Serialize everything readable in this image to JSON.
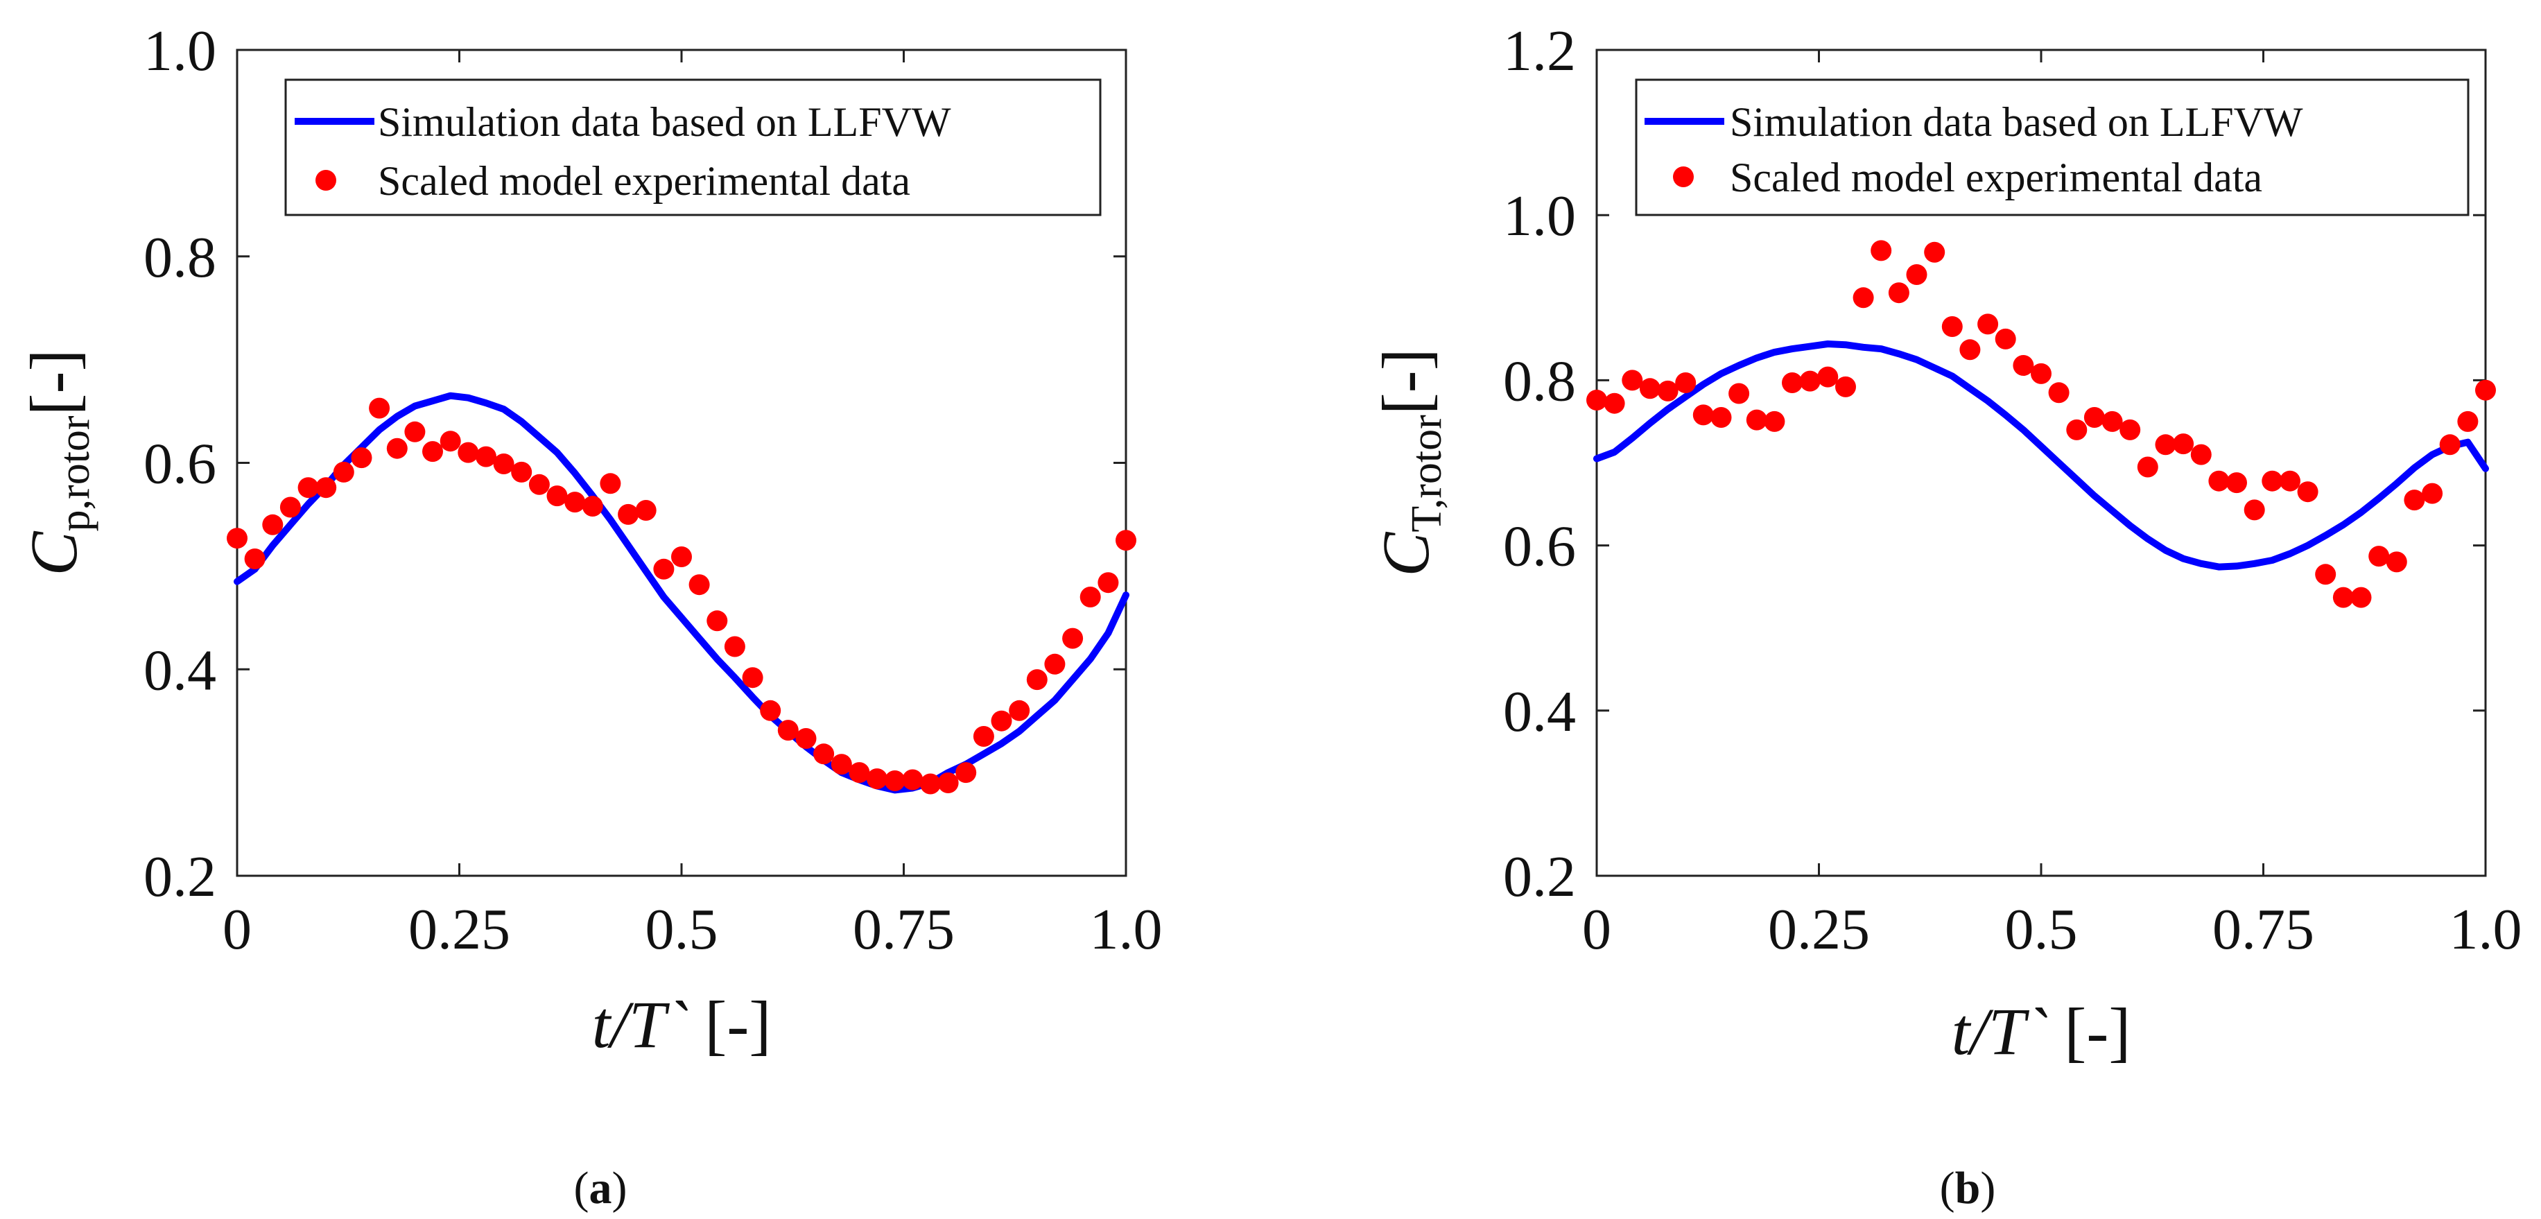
{
  "chart_data": [
    {
      "id": "a",
      "type": "line+scatter",
      "panel_label": "a",
      "xlabel": "t/T` [-]",
      "xlabel_var": "t/T`",
      "xlabel_unit": "[-]",
      "ylabel": "Cp,rotor [-]",
      "ylabel_var": "C",
      "ylabel_sub": "p,rotor",
      "ylabel_unit": "[-]",
      "xlim": [
        0,
        1.0
      ],
      "ylim": [
        0.2,
        1.0
      ],
      "x_ticks": [
        0,
        0.25,
        0.5,
        0.75,
        1.0
      ],
      "x_tick_labels": [
        "0",
        "0.25",
        "0.5",
        "0.75",
        "1.0"
      ],
      "y_ticks": [
        0.2,
        0.4,
        0.6,
        0.8,
        1.0
      ],
      "y_tick_labels": [
        "0.2",
        "0.4",
        "0.6",
        "0.8",
        "1.0"
      ],
      "legend_position": "top",
      "series": [
        {
          "name": "Simulation data based on LLFVW",
          "kind": "line",
          "color": "#0000ff",
          "x": [
            0,
            0.02,
            0.04,
            0.06,
            0.08,
            0.1,
            0.12,
            0.14,
            0.16,
            0.18,
            0.2,
            0.22,
            0.24,
            0.26,
            0.28,
            0.3,
            0.32,
            0.34,
            0.36,
            0.38,
            0.4,
            0.42,
            0.44,
            0.46,
            0.48,
            0.5,
            0.52,
            0.54,
            0.56,
            0.58,
            0.6,
            0.62,
            0.64,
            0.66,
            0.68,
            0.7,
            0.72,
            0.74,
            0.76,
            0.78,
            0.8,
            0.82,
            0.84,
            0.86,
            0.88,
            0.9,
            0.92,
            0.94,
            0.96,
            0.98,
            1.0
          ],
          "y": [
            0.485,
            0.497,
            0.52,
            0.54,
            0.56,
            0.578,
            0.598,
            0.615,
            0.632,
            0.645,
            0.655,
            0.66,
            0.665,
            0.663,
            0.658,
            0.652,
            0.64,
            0.625,
            0.61,
            0.59,
            0.568,
            0.545,
            0.52,
            0.495,
            0.47,
            0.45,
            0.43,
            0.41,
            0.392,
            0.373,
            0.355,
            0.34,
            0.325,
            0.312,
            0.3,
            0.293,
            0.287,
            0.283,
            0.285,
            0.29,
            0.3,
            0.308,
            0.318,
            0.328,
            0.34,
            0.355,
            0.37,
            0.39,
            0.41,
            0.435,
            0.472
          ]
        },
        {
          "name": "Scaled model experimental data",
          "kind": "scatter",
          "color": "#ff0000",
          "x": [
            0,
            0.02,
            0.04,
            0.06,
            0.08,
            0.1,
            0.12,
            0.14,
            0.16,
            0.18,
            0.2,
            0.22,
            0.24,
            0.26,
            0.28,
            0.3,
            0.32,
            0.34,
            0.36,
            0.38,
            0.4,
            0.42,
            0.44,
            0.46,
            0.48,
            0.5,
            0.52,
            0.54,
            0.56,
            0.58,
            0.6,
            0.62,
            0.64,
            0.66,
            0.68,
            0.7,
            0.72,
            0.74,
            0.76,
            0.78,
            0.8,
            0.82,
            0.84,
            0.86,
            0.88,
            0.9,
            0.92,
            0.94,
            0.96,
            0.98,
            1.0
          ],
          "y": [
            0.527,
            0.507,
            0.54,
            0.557,
            0.576,
            0.576,
            0.591,
            0.605,
            0.653,
            0.614,
            0.63,
            0.611,
            0.621,
            0.61,
            0.606,
            0.599,
            0.591,
            0.579,
            0.568,
            0.562,
            0.558,
            0.58,
            0.55,
            0.554,
            0.497,
            0.509,
            0.482,
            0.447,
            0.422,
            0.392,
            0.36,
            0.341,
            0.333,
            0.318,
            0.308,
            0.3,
            0.294,
            0.292,
            0.293,
            0.289,
            0.29,
            0.3,
            0.335,
            0.35,
            0.36,
            0.39,
            0.405,
            0.43,
            0.47,
            0.484,
            0.525
          ]
        }
      ]
    },
    {
      "id": "b",
      "type": "line+scatter",
      "panel_label": "b",
      "xlabel": "t/T` [-]",
      "xlabel_var": "t/T`",
      "xlabel_unit": "[-]",
      "ylabel": "CT,rotor [-]",
      "ylabel_var": "C",
      "ylabel_sub": "T,rotor",
      "ylabel_unit": "[-]",
      "xlim": [
        0,
        1.0
      ],
      "ylim": [
        0.2,
        1.2
      ],
      "x_ticks": [
        0,
        0.25,
        0.5,
        0.75,
        1.0
      ],
      "x_tick_labels": [
        "0",
        "0.25",
        "0.5",
        "0.75",
        "1.0"
      ],
      "y_ticks": [
        0.2,
        0.4,
        0.6,
        0.8,
        1.0,
        1.2
      ],
      "y_tick_labels": [
        "0.2",
        "0.4",
        "0.6",
        "0.8",
        "1.0",
        "1.2"
      ],
      "legend_position": "top",
      "series": [
        {
          "name": "Simulation data based on LLFVW",
          "kind": "line",
          "color": "#0000ff",
          "x": [
            0,
            0.02,
            0.04,
            0.06,
            0.08,
            0.1,
            0.12,
            0.14,
            0.16,
            0.18,
            0.2,
            0.22,
            0.24,
            0.26,
            0.28,
            0.3,
            0.32,
            0.34,
            0.36,
            0.38,
            0.4,
            0.42,
            0.44,
            0.46,
            0.48,
            0.5,
            0.52,
            0.54,
            0.56,
            0.58,
            0.6,
            0.62,
            0.64,
            0.66,
            0.68,
            0.7,
            0.72,
            0.74,
            0.76,
            0.78,
            0.8,
            0.82,
            0.84,
            0.86,
            0.88,
            0.9,
            0.92,
            0.94,
            0.96,
            0.98,
            1.0
          ],
          "y": [
            0.705,
            0.713,
            0.73,
            0.748,
            0.765,
            0.78,
            0.795,
            0.808,
            0.818,
            0.827,
            0.834,
            0.838,
            0.841,
            0.844,
            0.843,
            0.84,
            0.838,
            0.832,
            0.825,
            0.815,
            0.805,
            0.79,
            0.775,
            0.758,
            0.74,
            0.72,
            0.7,
            0.68,
            0.66,
            0.642,
            0.624,
            0.608,
            0.594,
            0.584,
            0.578,
            0.574,
            0.575,
            0.578,
            0.582,
            0.59,
            0.6,
            0.612,
            0.625,
            0.64,
            0.657,
            0.675,
            0.694,
            0.71,
            0.72,
            0.725,
            0.693
          ]
        },
        {
          "name": "Scaled model experimental data",
          "kind": "scatter",
          "color": "#ff0000",
          "x": [
            0,
            0.02,
            0.04,
            0.06,
            0.08,
            0.1,
            0.12,
            0.14,
            0.16,
            0.18,
            0.2,
            0.22,
            0.24,
            0.26,
            0.28,
            0.3,
            0.32,
            0.34,
            0.36,
            0.38,
            0.4,
            0.42,
            0.44,
            0.46,
            0.48,
            0.5,
            0.52,
            0.54,
            0.56,
            0.58,
            0.6,
            0.62,
            0.64,
            0.66,
            0.68,
            0.7,
            0.72,
            0.74,
            0.76,
            0.78,
            0.8,
            0.82,
            0.84,
            0.86,
            0.88,
            0.9,
            0.92,
            0.94,
            0.96,
            0.98,
            1.0
          ],
          "y": [
            0.776,
            0.772,
            0.8,
            0.79,
            0.787,
            0.797,
            0.758,
            0.755,
            0.784,
            0.752,
            0.75,
            0.797,
            0.799,
            0.804,
            0.792,
            0.9,
            0.957,
            0.906,
            0.928,
            0.955,
            0.865,
            0.837,
            0.868,
            0.85,
            0.818,
            0.808,
            0.785,
            0.74,
            0.755,
            0.75,
            0.74,
            0.695,
            0.722,
            0.723,
            0.71,
            0.678,
            0.676,
            0.643,
            0.678,
            0.678,
            0.665,
            0.565,
            0.537,
            0.537,
            0.587,
            0.58,
            0.655,
            0.663,
            0.722,
            0.75,
            0.788
          ]
        }
      ]
    }
  ]
}
